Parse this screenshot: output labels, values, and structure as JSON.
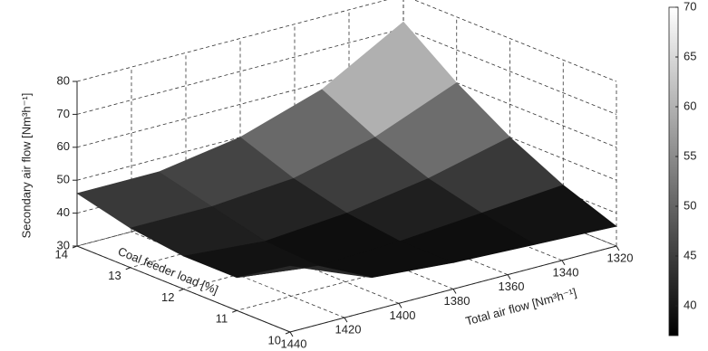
{
  "chart_data": {
    "type": "surface",
    "x_label": "Total air flow [Nm³h⁻¹]",
    "y_label": "Coal feeder load [%]",
    "z_label": "Secondary air flow [Nm³h⁻¹]",
    "x": [
      1320,
      1350,
      1380,
      1410,
      1440
    ],
    "y": [
      10,
      11,
      12,
      13,
      14
    ],
    "z": [
      [
        36,
        37,
        38,
        40,
        50
      ],
      [
        42,
        40,
        38,
        37,
        40
      ],
      [
        50,
        44,
        40,
        38,
        40
      ],
      [
        60,
        50,
        44,
        42,
        42
      ],
      [
        72,
        58,
        50,
        46,
        46
      ]
    ],
    "xlim": [
      1320,
      1440
    ],
    "xticks": [
      1320,
      1340,
      1360,
      1380,
      1400,
      1420,
      1440
    ],
    "ylim": [
      10,
      14
    ],
    "yticks": [
      10,
      11,
      12,
      13,
      14
    ],
    "zlim": [
      30,
      80
    ],
    "zticks": [
      30,
      40,
      50,
      60,
      70,
      80
    ],
    "colormap": "gray",
    "clim": [
      37,
      70
    ],
    "cticks": [
      40,
      45,
      50,
      55,
      60,
      65,
      70
    ],
    "grid": true
  }
}
